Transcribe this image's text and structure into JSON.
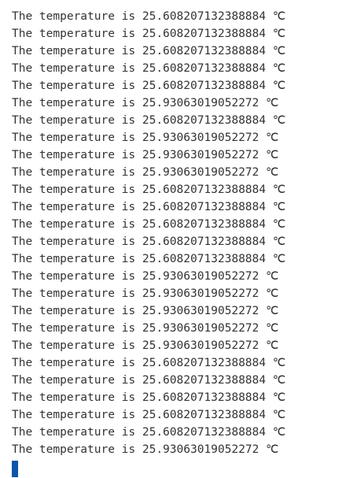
{
  "terminal": {
    "lines": [
      "The temperature is 25.608207132388884 ℃",
      "The temperature is 25.608207132388884 ℃",
      "The temperature is 25.608207132388884 ℃",
      "The temperature is 25.608207132388884 ℃",
      "The temperature is 25.608207132388884 ℃",
      "The temperature is 25.93063019052272 ℃",
      "The temperature is 25.608207132388884 ℃",
      "The temperature is 25.93063019052272 ℃",
      "The temperature is 25.93063019052272 ℃",
      "The temperature is 25.93063019052272 ℃",
      "The temperature is 25.608207132388884 ℃",
      "The temperature is 25.608207132388884 ℃",
      "The temperature is 25.608207132388884 ℃",
      "The temperature is 25.608207132388884 ℃",
      "The temperature is 25.608207132388884 ℃",
      "The temperature is 25.93063019052272 ℃",
      "The temperature is 25.93063019052272 ℃",
      "The temperature is 25.93063019052272 ℃",
      "The temperature is 25.93063019052272 ℃",
      "The temperature is 25.93063019052272 ℃",
      "The temperature is 25.608207132388884 ℃",
      "The temperature is 25.608207132388884 ℃",
      "The temperature is 25.608207132388884 ℃",
      "The temperature is 25.608207132388884 ℃",
      "The temperature is 25.608207132388884 ℃",
      "The temperature is 25.93063019052272 ℃"
    ],
    "cursor_color": "#0e56a8",
    "text_color": "#333333",
    "background_color": "#ffffff"
  }
}
